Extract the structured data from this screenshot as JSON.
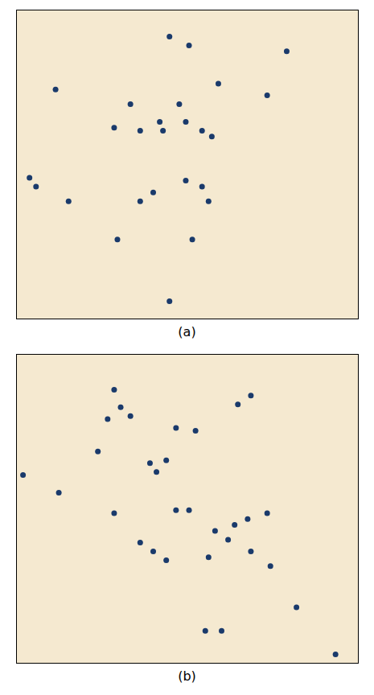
{
  "chart_data": [
    {
      "type": "scatter",
      "xlabel": "(a)",
      "color": "#1a3a6b",
      "xlim": [
        0,
        1.05
      ],
      "ylim": [
        0,
        1.05
      ],
      "xticks": [],
      "yticks": [],
      "tick_labels": false,
      "x": [
        0.47,
        0.53,
        0.83,
        0.12,
        0.35,
        0.5,
        0.62,
        0.77,
        0.3,
        0.38,
        0.44,
        0.45,
        0.52,
        0.57,
        0.6,
        0.04,
        0.06,
        0.16,
        0.38,
        0.42,
        0.52,
        0.57,
        0.59,
        0.31,
        0.54,
        0.47
      ],
      "values": [
        0.96,
        0.93,
        0.91,
        0.78,
        0.73,
        0.73,
        0.8,
        0.76,
        0.65,
        0.64,
        0.67,
        0.64,
        0.67,
        0.64,
        0.62,
        0.48,
        0.45,
        0.4,
        0.4,
        0.43,
        0.47,
        0.45,
        0.4,
        0.27,
        0.27,
        0.06
      ]
    },
    {
      "type": "scatter",
      "xlabel": "(b)",
      "color": "#1a3a6b",
      "xlim": [
        0,
        1.05
      ],
      "ylim": [
        0,
        1.05
      ],
      "xticks": [],
      "yticks": [],
      "tick_labels": false,
      "x": [
        0.3,
        0.32,
        0.35,
        0.28,
        0.49,
        0.55,
        0.68,
        0.72,
        0.02,
        0.25,
        0.41,
        0.43,
        0.46,
        0.13,
        0.3,
        0.49,
        0.53,
        0.38,
        0.42,
        0.46,
        0.61,
        0.67,
        0.71,
        0.77,
        0.59,
        0.65,
        0.72,
        0.78,
        0.86,
        0.58,
        0.63,
        0.98
      ],
      "values": [
        0.93,
        0.87,
        0.84,
        0.83,
        0.8,
        0.79,
        0.88,
        0.91,
        0.64,
        0.72,
        0.68,
        0.65,
        0.69,
        0.58,
        0.51,
        0.52,
        0.52,
        0.41,
        0.38,
        0.35,
        0.45,
        0.47,
        0.49,
        0.51,
        0.36,
        0.42,
        0.38,
        0.33,
        0.19,
        0.11,
        0.11,
        0.03
      ]
    }
  ]
}
